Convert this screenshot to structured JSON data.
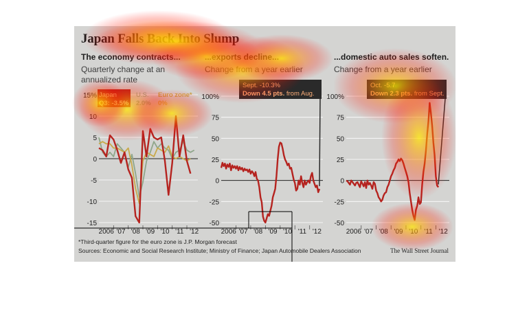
{
  "title": "Japan Falls Back Into Slump",
  "footnote": "*Third-quarter figure for the euro zone is J.P. Morgan forecast",
  "sources": "Sources: Economic and Social Research Institute; Ministry of Finance; Japan Automobile Dealers Association",
  "credit": "The Wall Street Journal",
  "colors": {
    "background": "#d4d4d2",
    "red_series": "#b5231f",
    "us_series": "#8fa68a",
    "euro_series": "#c8a94a",
    "callout_bg": "#2a2a2a",
    "grid": "#ffffff",
    "heatmap": "#ff2a00"
  },
  "chart_data": [
    {
      "type": "line",
      "subtitle": "The economy contracts...",
      "ylabel": "Quarterly change at an annualized rate",
      "ylim": [
        -15,
        15
      ],
      "yticks": [
        15,
        10,
        5,
        0,
        -5,
        -10,
        -15
      ],
      "ytick_labels": [
        "15%",
        "10",
        "5",
        "0",
        "-5",
        "-10",
        "-15"
      ],
      "xticks": [
        "2006",
        "'07",
        "'08",
        "'09",
        "'10",
        "'11",
        "'12"
      ],
      "x_start": 2006.0,
      "x_step": 0.25,
      "grid": true,
      "legend": [
        {
          "name": "Japan",
          "value": "Q3: -3.5%",
          "series": 0
        },
        {
          "name": "U.S.",
          "value": "2.0%",
          "series": 1
        },
        {
          "name": "Euro zone*",
          "value": "0%",
          "series": 2
        }
      ],
      "series": [
        {
          "name": "Japan",
          "color": "#b5231f",
          "values": [
            2.5,
            2.0,
            0.5,
            5.5,
            4.5,
            2.0,
            -1.0,
            1.5,
            -2.5,
            -4.5,
            -13.5,
            -15.0,
            6.5,
            0.5,
            7.0,
            5.0,
            4.5,
            5.0,
            -0.5,
            -8.5,
            -1.0,
            10.0,
            0.5,
            5.5,
            -0.5,
            -3.5
          ]
        },
        {
          "name": "U.S.",
          "color": "#8fa68a",
          "values": [
            5.0,
            1.5,
            0.5,
            1.5,
            0.5,
            3.5,
            2.5,
            1.5,
            -2.0,
            1.0,
            -3.5,
            -9.0,
            -5.5,
            -0.5,
            1.5,
            4.0,
            2.5,
            3.5,
            2.5,
            2.0,
            0.0,
            1.5,
            2.0,
            4.0,
            2.0,
            1.5,
            2.0
          ]
        },
        {
          "name": "Euro zone*",
          "color": "#c8a94a",
          "values": [
            3.5,
            4.0,
            3.5,
            3.5,
            2.5,
            2.5,
            2.0,
            1.5,
            2.5,
            -1.5,
            -7.0,
            -10.5,
            -0.5,
            1.5,
            1.0,
            0.5,
            2.5,
            2.0,
            1.5,
            3.0,
            0.5,
            0.0,
            0.5,
            0.0,
            -0.5,
            0.0
          ]
        }
      ]
    },
    {
      "type": "line",
      "subtitle": "...exports decline...",
      "ylabel": "Change from a year earlier",
      "ylim": [
        -50,
        100
      ],
      "yticks": [
        100,
        75,
        50,
        25,
        0,
        -25,
        -50
      ],
      "ytick_labels": [
        "100%",
        "75",
        "50",
        "25",
        "0",
        "-25",
        "-50"
      ],
      "xticks": [
        "2006",
        "'07",
        "'08",
        "'09",
        "'10",
        "'11",
        "'12"
      ],
      "x_start": 2006.0,
      "x_step": 0.083333,
      "grid": true,
      "callout": {
        "line1": "Sept. -10.3%",
        "line2_bold": "Down 4.5 pts.",
        "line2_rest": " from Aug."
      },
      "series": [
        {
          "name": "Exports",
          "color": "#b5231f",
          "values": [
            15,
            21,
            17,
            20,
            14,
            19,
            16,
            20,
            12,
            18,
            15,
            17,
            14,
            17,
            12,
            16,
            13,
            15,
            11,
            14,
            12,
            13,
            10,
            13,
            8,
            11,
            9,
            5,
            10,
            2,
            0,
            -8,
            -20,
            -26,
            -43,
            -48,
            -50,
            -45,
            -40,
            -42,
            -36,
            -30,
            -20,
            -15,
            -10,
            5,
            25,
            40,
            45,
            44,
            38,
            30,
            25,
            22,
            18,
            20,
            14,
            15,
            8,
            1,
            -3,
            -12,
            -10,
            0,
            -5,
            5,
            -3,
            -8,
            0,
            -5,
            -2,
            0,
            -3,
            5,
            9,
            0,
            -4,
            -8,
            -6,
            -14,
            -10
          ]
        }
      ]
    },
    {
      "type": "line",
      "subtitle": "...domestic auto sales soften.",
      "ylabel": "Change from a year earlier",
      "ylim": [
        -50,
        100
      ],
      "yticks": [
        100,
        75,
        50,
        25,
        0,
        -25,
        -50
      ],
      "ytick_labels": [
        "100%",
        "75",
        "50",
        "25",
        "0",
        "-25",
        "-50"
      ],
      "xticks": [
        "2006",
        "'07",
        "'08",
        "'09",
        "'10",
        "'11",
        "'12"
      ],
      "x_start": 2006.0,
      "x_step": 0.083333,
      "grid": true,
      "callout": {
        "line1": "Oct. -5.7",
        "line2_bold": "Down 2.3 pts.",
        "line2_rest": " from Sept."
      },
      "series": [
        {
          "name": "Auto sales",
          "color": "#b5231f",
          "values": [
            0,
            -1,
            -3,
            -5,
            0,
            -2,
            -4,
            -6,
            -3,
            -2,
            -5,
            -8,
            -1,
            -4,
            -7,
            -2,
            -9,
            0,
            -5,
            -3,
            -6,
            -10,
            -2,
            -4,
            -12,
            -15,
            -20,
            -22,
            -25,
            -23,
            -18,
            -15,
            -14,
            -8,
            -5,
            0,
            5,
            8,
            12,
            15,
            20,
            22,
            25,
            23,
            26,
            24,
            20,
            15,
            10,
            5,
            -2,
            -15,
            -25,
            -35,
            -42,
            -47,
            -35,
            -30,
            -20,
            -28,
            -26,
            -5,
            10,
            20,
            35,
            55,
            70,
            92,
            80,
            65,
            45,
            30,
            5,
            -6,
            -8
          ]
        }
      ]
    }
  ]
}
